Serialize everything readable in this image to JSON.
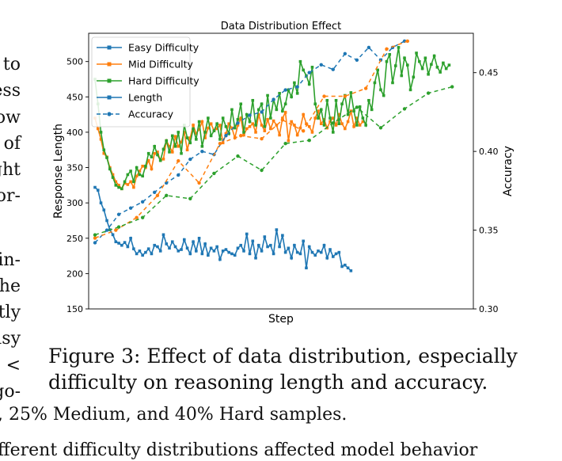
{
  "side_text": {
    "l1": "to",
    "l2": "ess",
    "l3": "ow",
    "l4": "of",
    "l5": "ght",
    "l6": "for-",
    "l7": "ain-",
    "l8": "he",
    "l9": "tly",
    "l10": "asy",
    "l11": "<",
    "l12": "go-"
  },
  "caption": {
    "text": "Figure 3: Effect of data distribution, especially difficulty on reasoning length and accuracy."
  },
  "bottom_text": {
    "line1": ", 25% Medium, and 40% Hard samples.",
    "line2": "fferent difficulty distributions affected model behavior"
  },
  "colors": {
    "easy": "#1f77b4",
    "mid": "#ff7f0e",
    "hard": "#2ca02c"
  },
  "chart_data": {
    "type": "line",
    "title": "Data Distribution Effect",
    "xlabel": "Step",
    "ylabel": "Response Length",
    "y2label": "Accuracy",
    "ylim": [
      150,
      540
    ],
    "y2lim": [
      0.3,
      0.475
    ],
    "yticks": [
      150,
      200,
      250,
      300,
      350,
      400,
      450,
      500
    ],
    "y2ticks": [
      0.3,
      0.35,
      0.4,
      0.45
    ],
    "y2tick_labels": [
      "0.30",
      "0.35",
      "0.40",
      "0.45"
    ],
    "legend_position": "top-left",
    "legend": [
      "Easy Difficulty",
      "Mid Difficulty",
      "Hard Difficulty",
      "Length",
      "Accuracy"
    ],
    "series": [
      {
        "name": "Easy Difficulty Length",
        "difficulty": "easy",
        "metric": "length",
        "x": [
          0,
          1,
          2,
          3,
          4,
          5,
          6,
          7,
          8,
          9,
          10,
          11,
          12,
          13,
          14,
          15,
          16,
          17,
          18,
          19,
          20,
          21,
          22,
          23,
          24,
          25,
          26,
          27,
          28,
          29,
          30,
          31,
          32,
          33,
          34,
          35,
          36,
          37,
          38,
          39,
          40,
          41,
          42,
          43,
          44,
          45,
          46,
          47,
          48,
          49,
          50,
          51,
          52,
          53,
          54,
          55,
          56,
          57,
          58,
          59,
          60,
          61,
          62,
          63,
          64,
          65,
          66,
          67,
          68,
          69,
          70,
          71,
          72,
          73,
          74,
          75,
          76,
          77,
          78,
          79,
          80,
          81,
          82,
          83,
          84,
          85,
          86
        ],
        "values": [
          322,
          318,
          300,
          290,
          275,
          262,
          255,
          245,
          243,
          240,
          244,
          238,
          250,
          235,
          228,
          232,
          226,
          230,
          235,
          228,
          240,
          238,
          232,
          255,
          242,
          236,
          245,
          238,
          232,
          234,
          248,
          236,
          228,
          245,
          232,
          250,
          228,
          242,
          226,
          236,
          232,
          238,
          220,
          232,
          234,
          230,
          228,
          226,
          236,
          240,
          232,
          256,
          228,
          246,
          222,
          240,
          232,
          252,
          238,
          240,
          228,
          262,
          238,
          254,
          230,
          236,
          222,
          240,
          230,
          228,
          246,
          208,
          238,
          230,
          226,
          232,
          230,
          240,
          222,
          234,
          224,
          228,
          230,
          210,
          212,
          208,
          204
        ]
      },
      {
        "name": "Mid Difficulty Length",
        "difficulty": "mid",
        "metric": "length",
        "x": [
          0,
          1,
          2,
          3,
          4,
          5,
          6,
          7,
          8,
          9,
          10,
          11,
          12,
          13,
          14,
          15,
          16,
          17,
          18,
          19,
          20,
          21,
          22,
          23,
          24,
          25,
          26,
          27,
          28,
          29,
          30,
          31,
          32,
          33,
          34,
          35,
          36,
          37,
          38,
          39,
          40,
          41,
          42,
          43,
          44,
          45,
          46,
          47,
          48,
          49,
          50,
          51,
          52,
          53,
          54,
          55,
          56,
          57,
          58,
          59,
          60,
          61,
          62,
          63,
          64,
          65,
          66,
          67,
          68,
          69,
          70,
          71,
          72,
          73,
          74,
          75,
          76,
          77,
          78,
          79,
          80,
          81,
          82,
          83,
          84,
          85,
          86,
          87,
          88,
          89,
          90
        ],
        "values": [
          420,
          405,
          390,
          370,
          365,
          350,
          340,
          330,
          325,
          320,
          328,
          326,
          330,
          322,
          338,
          345,
          352,
          350,
          360,
          348,
          370,
          372,
          360,
          362,
          388,
          380,
          372,
          394,
          380,
          386,
          400,
          375,
          392,
          410,
          398,
          404,
          415,
          392,
          406,
          412,
          402,
          405,
          410,
          385,
          398,
          412,
          406,
          392,
          410,
          420,
          396,
          405,
          408,
          412,
          400,
          425,
          410,
          402,
          418,
          405,
          416,
          410,
          396,
          420,
          428,
          388,
          415,
          410,
          396,
          406,
          425,
          412,
          408,
          400,
          420,
          430,
          412,
          418,
          406,
          415,
          420,
          410,
          425,
          412,
          405,
          415,
          430,
          408,
          420,
          410,
          415
        ]
      },
      {
        "name": "Hard Difficulty Length",
        "difficulty": "hard",
        "metric": "length",
        "x": [
          0,
          1,
          2,
          3,
          4,
          5,
          6,
          7,
          8,
          9,
          10,
          11,
          12,
          13,
          14,
          15,
          16,
          17,
          18,
          19,
          20,
          21,
          22,
          23,
          24,
          25,
          26,
          27,
          28,
          29,
          30,
          31,
          32,
          33,
          34,
          35,
          36,
          37,
          38,
          39,
          40,
          41,
          42,
          43,
          44,
          45,
          46,
          47,
          48,
          49,
          50,
          51,
          52,
          53,
          54,
          55,
          56,
          57,
          58,
          59,
          60,
          61,
          62,
          63,
          64,
          65,
          66,
          67,
          68,
          69,
          70,
          71,
          72,
          73,
          74,
          75,
          76,
          77,
          78,
          79,
          80,
          81,
          82,
          83,
          84,
          85,
          86,
          87,
          88,
          89,
          90,
          91,
          92,
          93,
          94,
          95,
          96,
          97,
          98,
          99,
          100,
          101,
          102,
          103,
          104,
          105,
          106,
          107,
          108,
          109,
          110,
          111,
          112,
          113,
          114,
          115,
          116,
          117,
          118,
          119
        ],
        "values": [
          475,
          440,
          400,
          375,
          364,
          348,
          336,
          325,
          322,
          320,
          330,
          340,
          345,
          330,
          350,
          340,
          338,
          352,
          370,
          365,
          380,
          368,
          360,
          376,
          388,
          372,
          395,
          380,
          400,
          370,
          410,
          392,
          385,
          405,
          390,
          415,
          380,
          400,
          420,
          395,
          402,
          412,
          390,
          420,
          408,
          398,
          432,
          406,
          418,
          440,
          400,
          425,
          415,
          445,
          410,
          432,
          440,
          408,
          452,
          420,
          446,
          432,
          455,
          430,
          440,
          460,
          450,
          470,
          455,
          500,
          488,
          480,
          468,
          492,
          440,
          420,
          432,
          410,
          445,
          420,
          400,
          445,
          412,
          440,
          452,
          425,
          456,
          430,
          410,
          436,
          420,
          410,
          445,
          432,
          470,
          488,
          460,
          452,
          500,
          510,
          470,
          494,
          520,
          480,
          505,
          495,
          460,
          478,
          512,
          500,
          490,
          505,
          482,
          496,
          508,
          492,
          485,
          498,
          490,
          495
        ]
      },
      {
        "name": "Easy Difficulty Accuracy",
        "difficulty": "easy",
        "metric": "accuracy",
        "x": [
          0,
          4,
          8,
          12,
          16,
          20,
          24,
          28,
          32,
          36,
          40,
          44,
          48,
          52,
          56,
          60,
          64,
          68,
          72,
          76,
          80,
          84,
          88,
          92,
          96,
          100,
          104
        ],
        "values": [
          0.342,
          0.35,
          0.36,
          0.364,
          0.368,
          0.374,
          0.38,
          0.385,
          0.395,
          0.4,
          0.398,
          0.41,
          0.418,
          0.423,
          0.425,
          0.433,
          0.439,
          0.441,
          0.45,
          0.455,
          0.452,
          0.462,
          0.458,
          0.466,
          0.458,
          0.466,
          0.47
        ]
      },
      {
        "name": "Mid Difficulty Accuracy",
        "difficulty": "mid",
        "metric": "accuracy",
        "x": [
          0,
          7,
          14,
          21,
          28,
          35,
          42,
          49,
          56,
          63,
          70,
          77,
          84,
          91,
          98,
          105
        ],
        "values": [
          0.345,
          0.35,
          0.358,
          0.372,
          0.394,
          0.38,
          0.405,
          0.41,
          0.408,
          0.42,
          0.413,
          0.435,
          0.435,
          0.44,
          0.465,
          0.47
        ]
      },
      {
        "name": "Hard Difficulty Accuracy",
        "difficulty": "hard",
        "metric": "accuracy",
        "x": [
          0,
          8,
          16,
          24,
          32,
          40,
          48,
          56,
          64,
          72,
          80,
          88,
          96,
          104,
          112,
          120
        ],
        "values": [
          0.347,
          0.352,
          0.358,
          0.372,
          0.37,
          0.386,
          0.397,
          0.388,
          0.405,
          0.407,
          0.418,
          0.428,
          0.415,
          0.427,
          0.437,
          0.441
        ]
      }
    ]
  }
}
